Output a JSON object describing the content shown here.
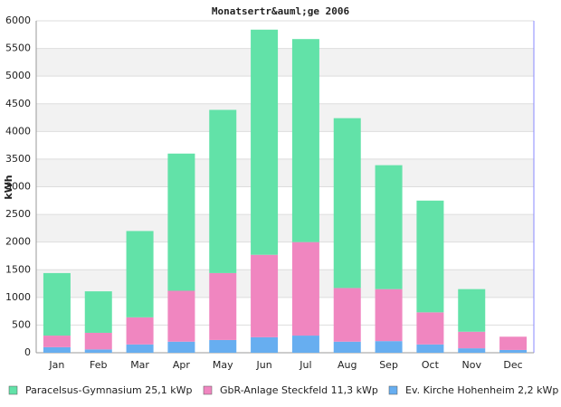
{
  "chart_data": {
    "type": "stacked_bar",
    "title": "Monatsertr&auml;ge 2006",
    "y_label": "kWh",
    "categories": [
      "Jan",
      "Feb",
      "Mar",
      "Apr",
      "May",
      "Jun",
      "Jul",
      "Aug",
      "Sep",
      "Oct",
      "Nov",
      "Dec"
    ],
    "series": [
      {
        "name": "Ev. Kirche Hohenheim 2,2 kWp",
        "color": "#67aef0",
        "values": [
          100,
          60,
          150,
          200,
          230,
          280,
          310,
          200,
          210,
          150,
          80,
          50
        ]
      },
      {
        "name": "GbR-Anlage Steckfeld 11,3 kWp",
        "color": "#f086c0",
        "values": [
          210,
          300,
          490,
          920,
          1210,
          1490,
          1690,
          970,
          940,
          580,
          300,
          240
        ]
      },
      {
        "name": "Paracelsus-Gymnasium 25,1 kWp",
        "color": "#62e2a8",
        "values": [
          1130,
          750,
          1560,
          2480,
          2950,
          4070,
          3670,
          3070,
          2240,
          2020,
          770,
          0
        ]
      }
    ],
    "ylim": [
      0,
      6000
    ],
    "yticks": [
      0,
      500,
      1000,
      1500,
      2000,
      2500,
      3000,
      3500,
      4000,
      4500,
      5000,
      5500,
      6000
    ],
    "grid": true
  }
}
